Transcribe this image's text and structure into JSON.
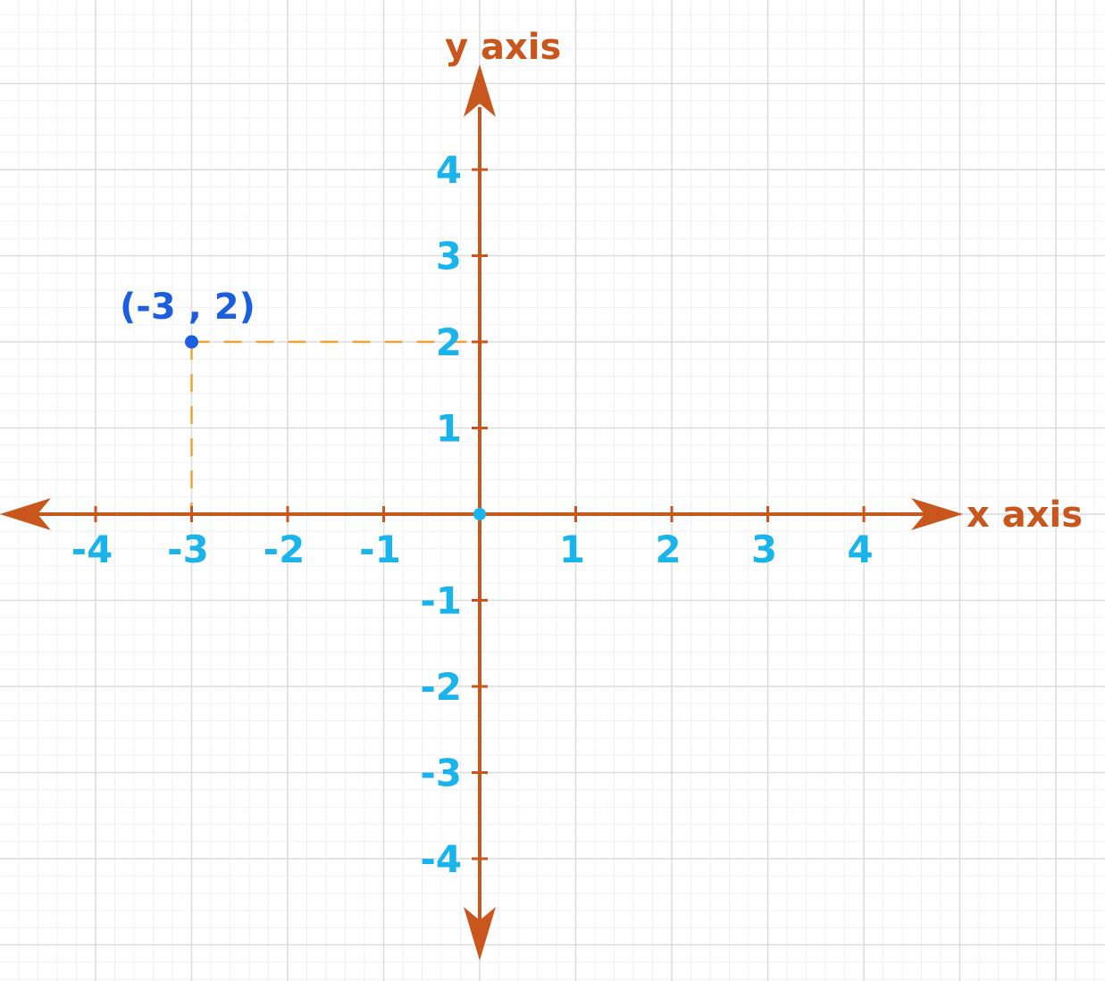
{
  "colors": {
    "axis": "#c8561d",
    "ticks": "#19b4ec",
    "point": "#1d5ee0",
    "origin": "#19b4ec",
    "guide": "#f0a236",
    "grid_major": "#dcdcdc",
    "grid_minor": "#f0f0f0"
  },
  "axes": {
    "x_title": "x axis",
    "y_title": "y axis",
    "x_ticks": [
      "-4",
      "-3",
      "-2",
      "-1",
      "1",
      "2",
      "3",
      "4"
    ],
    "y_ticks": [
      "4",
      "3",
      "2",
      "1",
      "-1",
      "-2",
      "-3",
      "-4"
    ]
  },
  "point": {
    "label": "(-3 , 2)",
    "x": -3,
    "y": 2
  },
  "chart_data": {
    "type": "scatter",
    "x": [
      -3
    ],
    "y": [
      2
    ],
    "xlabel": "x axis",
    "ylabel": "y axis",
    "xlim": [
      -4,
      4
    ],
    "ylim": [
      -4,
      4
    ],
    "grid": true
  }
}
